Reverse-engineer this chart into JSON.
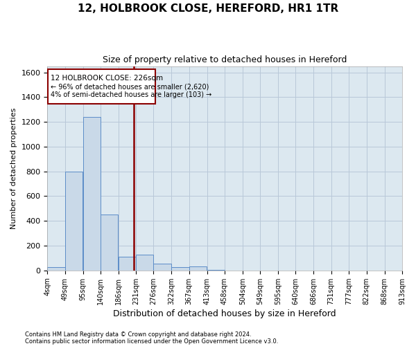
{
  "title": "12, HOLBROOK CLOSE, HEREFORD, HR1 1TR",
  "subtitle": "Size of property relative to detached houses in Hereford",
  "xlabel": "Distribution of detached houses by size in Hereford",
  "ylabel": "Number of detached properties",
  "footer_line1": "Contains HM Land Registry data © Crown copyright and database right 2024.",
  "footer_line2": "Contains public sector information licensed under the Open Government Licence v3.0.",
  "annotation_line1": "12 HOLBROOK CLOSE: 226sqm",
  "annotation_line2": "← 96% of detached houses are smaller (2,620)",
  "annotation_line3": "4% of semi-detached houses are larger (103) →",
  "property_line_x": 226,
  "bar_edges": [
    4,
    49,
    95,
    140,
    186,
    231,
    276,
    322,
    367,
    413,
    458,
    504,
    549,
    595,
    640,
    686,
    731,
    777,
    822,
    868,
    913
  ],
  "bar_heights": [
    25,
    800,
    1240,
    450,
    110,
    130,
    55,
    25,
    30,
    5,
    0,
    0,
    0,
    0,
    0,
    0,
    0,
    0,
    0,
    0
  ],
  "bar_color": "#c9d9e8",
  "bar_edge_color": "#5b8cc8",
  "line_color": "#8b0000",
  "annotation_box_color": "#8b0000",
  "grid_color": "#b8c8d8",
  "background_color": "#dce8f0",
  "ylim": [
    0,
    1650
  ],
  "yticks": [
    0,
    200,
    400,
    600,
    800,
    1000,
    1200,
    1400,
    1600
  ]
}
